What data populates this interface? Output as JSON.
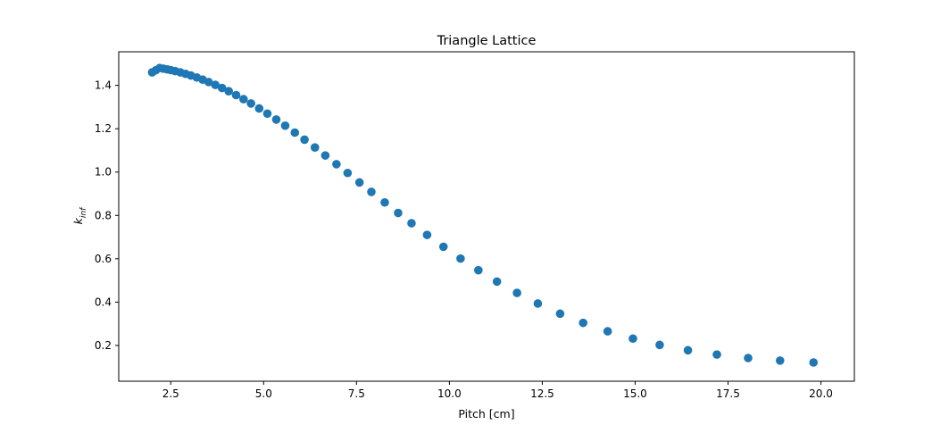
{
  "chart_data": {
    "type": "scatter",
    "title": "Triangle Lattice",
    "xlabel": "Pitch [cm]",
    "ylabel": "k_inf",
    "ylabel_main": "k",
    "ylabel_sub": "inf",
    "xlim": [
      1.1,
      20.9
    ],
    "ylim": [
      0.035,
      1.555
    ],
    "xticks": [
      2.5,
      5.0,
      7.5,
      10.0,
      12.5,
      15.0,
      17.5,
      20.0
    ],
    "xtick_labels": [
      "2.5",
      "5.0",
      "7.5",
      "10.0",
      "12.5",
      "15.0",
      "17.5",
      "20.0"
    ],
    "yticks": [
      0.2,
      0.4,
      0.6,
      0.8,
      1.0,
      1.2,
      1.4
    ],
    "ytick_labels": [
      "0.2",
      "0.4",
      "0.6",
      "0.8",
      "1.0",
      "1.2",
      "1.4"
    ],
    "grid": false,
    "marker_color": "#1f77b4",
    "x": [
      2.0,
      2.1,
      2.2,
      2.3,
      2.4,
      2.5,
      2.62,
      2.76,
      2.9,
      3.04,
      3.2,
      3.36,
      3.52,
      3.7,
      3.88,
      4.06,
      4.26,
      4.46,
      4.66,
      4.88,
      5.1,
      5.34,
      5.58,
      5.84,
      6.1,
      6.38,
      6.66,
      6.96,
      7.26,
      7.58,
      7.9,
      8.26,
      8.62,
      8.98,
      9.4,
      9.84,
      10.3,
      10.78,
      11.28,
      11.82,
      12.38,
      12.98,
      13.6,
      14.26,
      14.94,
      15.66,
      16.42,
      17.2,
      18.04,
      18.9,
      19.8
    ]
  }
}
